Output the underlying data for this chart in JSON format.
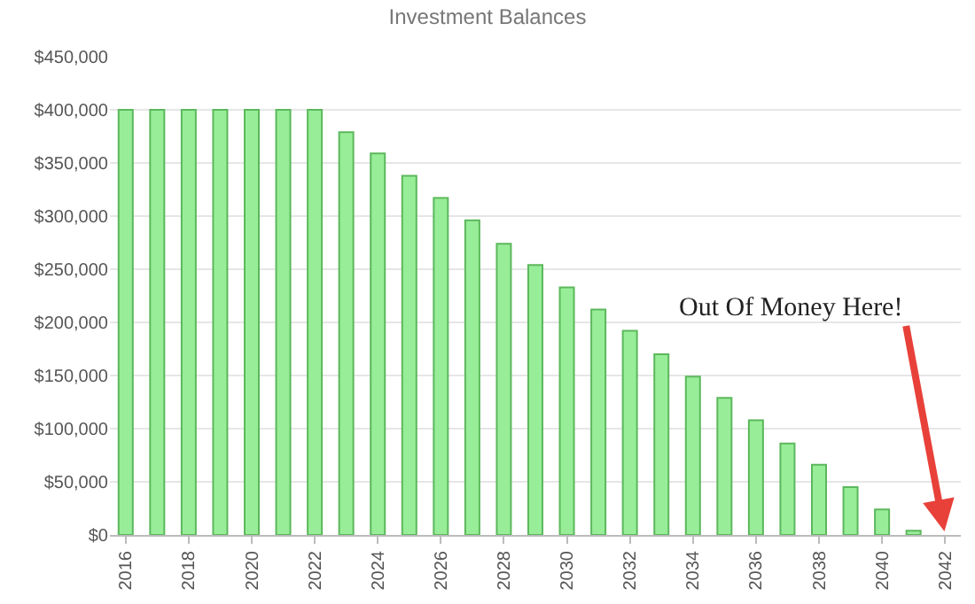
{
  "chart_data": {
    "type": "bar",
    "title": "Investment Balances",
    "categories": [
      "2016",
      null,
      "2018",
      null,
      "2020",
      null,
      "2022",
      null,
      "2024",
      null,
      "2026",
      null,
      "2028",
      null,
      "2030",
      null,
      "2032",
      null,
      "2034",
      null,
      "2036",
      null,
      "2038",
      null,
      "2040",
      null,
      "2042"
    ],
    "values": [
      400000,
      400000,
      400000,
      400000,
      400000,
      400000,
      400000,
      379000,
      359000,
      338000,
      317000,
      296000,
      274000,
      254000,
      233000,
      212000,
      192000,
      170000,
      149000,
      129000,
      108000,
      86000,
      66000,
      45000,
      24000,
      4000,
      0
    ],
    "color": "#98ee98",
    "ylim": [
      0,
      450000
    ],
    "yticks": [
      {
        "value": 0,
        "label": "$0"
      },
      {
        "value": 50000,
        "label": "$50,000"
      },
      {
        "value": 100000,
        "label": "$100,000"
      },
      {
        "value": 150000,
        "label": "$150,000"
      },
      {
        "value": 200000,
        "label": "$200,000"
      },
      {
        "value": 250000,
        "label": "$250,000"
      },
      {
        "value": 300000,
        "label": "$300,000"
      },
      {
        "value": 350000,
        "label": "$350,000"
      },
      {
        "value": 400000,
        "label": "$400,000"
      },
      {
        "value": 450000,
        "label": "$450,000"
      }
    ],
    "grid": "y",
    "annotations": [
      {
        "text": "Out Of Money Here!",
        "x": "2042",
        "y": 0
      }
    ]
  }
}
